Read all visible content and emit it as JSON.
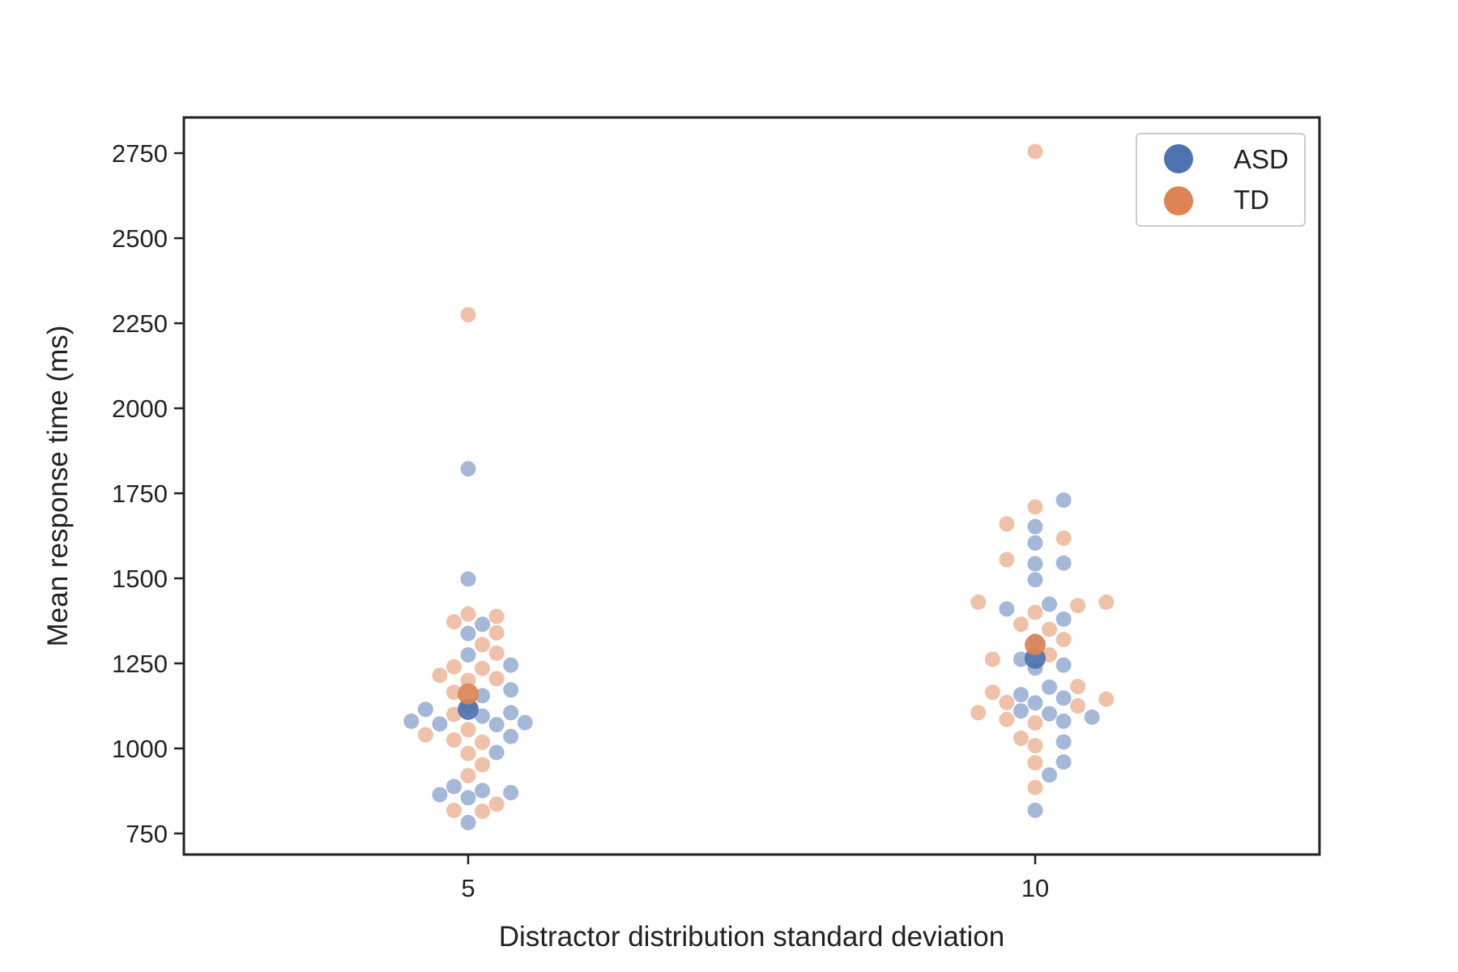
{
  "chart_data": {
    "type": "scatter",
    "title": "",
    "xlabel": "Distractor distribution standard deviation",
    "ylabel": "Mean response time (ms)",
    "categories": [
      "5",
      "10"
    ],
    "yticks": [
      750,
      1000,
      1250,
      1500,
      1750,
      2000,
      2250,
      2500,
      2750
    ],
    "ylim": [
      688,
      2855
    ],
    "legend_position": "top-right",
    "grid": false,
    "colors": {
      "ASD": "#4c72b0",
      "TD": "#dd8452",
      "frame": "#222222"
    },
    "series": [
      {
        "name": "ASD",
        "points": [
          {
            "category": "5",
            "values": [
              1822,
              1498,
              1365,
              1338,
              1275,
              1245,
              1172,
              1155,
              1125,
              1115,
              1105,
              1095,
              1080,
              1076,
              1072,
              1070,
              1035,
              988,
              888,
              876,
              870,
              864,
              855,
              782
            ]
          },
          {
            "category": "10",
            "values": [
              1730,
              1652,
              1604,
              1545,
              1543,
              1496,
              1424,
              1410,
              1380,
              1315,
              1262,
              1245,
              1236,
              1180,
              1158,
              1148,
              1134,
              1110,
              1102,
              1092,
              1080,
              1019,
              960,
              922,
              818
            ]
          }
        ],
        "means": [
          {
            "category": "5",
            "value": 1115
          },
          {
            "category": "10",
            "value": 1265
          }
        ]
      },
      {
        "name": "TD",
        "points": [
          {
            "category": "5",
            "values": [
              2275,
              1395,
              1388,
              1372,
              1340,
              1305,
              1280,
              1240,
              1235,
              1215,
              1205,
              1200,
              1165,
              1100,
              1055,
              1040,
              1025,
              1018,
              985,
              952,
              920,
              836,
              818,
              815
            ]
          },
          {
            "category": "10",
            "values": [
              2755,
              1710,
              1660,
              1618,
              1555,
              1430,
              1430,
              1420,
              1400,
              1365,
              1350,
              1320,
              1275,
              1262,
              1182,
              1165,
              1145,
              1135,
              1125,
              1105,
              1085,
              1075,
              1030,
              1008,
              958,
              885
            ]
          }
        ],
        "means": [
          {
            "category": "5",
            "value": 1160
          },
          {
            "category": "10",
            "value": 1305
          }
        ]
      }
    ]
  }
}
